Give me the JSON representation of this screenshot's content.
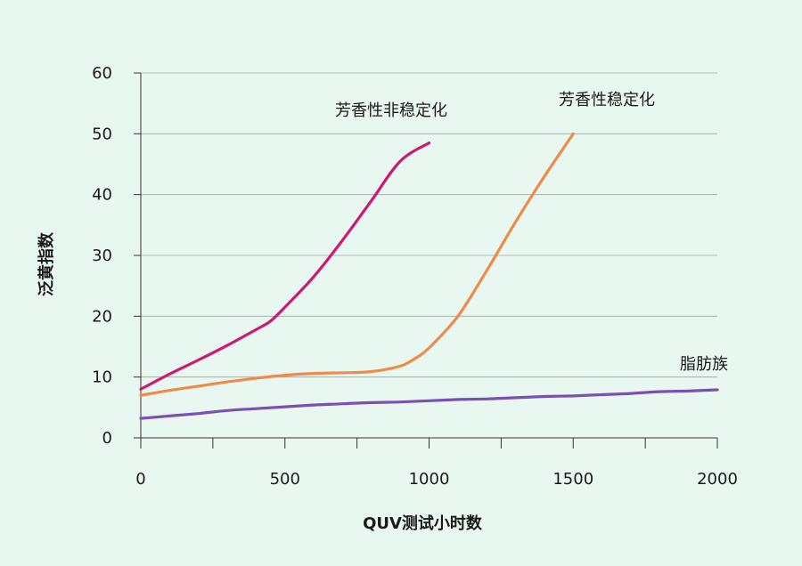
{
  "chart_data": {
    "type": "line",
    "xlabel": "QUV测试小时数",
    "ylabel": "泛黄指数",
    "xlim": [
      0,
      2000
    ],
    "ylim": [
      0,
      60
    ],
    "x_ticks": [
      0,
      500,
      1000,
      1500,
      2000
    ],
    "y_ticks": [
      0,
      10,
      20,
      30,
      40,
      50,
      60
    ],
    "x_minor_ticks": [
      250,
      750,
      1250,
      1750
    ],
    "grid": "horizontal",
    "series": [
      {
        "name": "芳香性非稳定化",
        "color": "#cc1a73",
        "x": [
          0,
          100,
          200,
          300,
          400,
          450,
          500,
          600,
          700,
          800,
          900,
          1000
        ],
        "y": [
          8,
          10.5,
          12.8,
          15.2,
          17.8,
          19.2,
          21.5,
          26.5,
          32.5,
          39,
          45.5,
          48.5
        ]
      },
      {
        "name": "芳香性稳定化",
        "color": "#f08a4b",
        "x": [
          0,
          100,
          200,
          300,
          400,
          500,
          600,
          700,
          800,
          900,
          950,
          1000,
          1100,
          1200,
          1300,
          1400,
          1500
        ],
        "y": [
          7,
          7.8,
          8.5,
          9.2,
          9.8,
          10.3,
          10.6,
          10.7,
          10.9,
          11.8,
          13,
          14.8,
          20,
          27.5,
          35.5,
          43,
          50
        ]
      },
      {
        "name": "脂肪族",
        "color": "#7b4fb5",
        "x": [
          0,
          100,
          200,
          300,
          400,
          500,
          600,
          700,
          800,
          900,
          1000,
          1100,
          1200,
          1300,
          1400,
          1500,
          1600,
          1700,
          1800,
          1900,
          2000
        ],
        "y": [
          3.2,
          3.6,
          4,
          4.5,
          4.8,
          5.1,
          5.4,
          5.6,
          5.8,
          5.9,
          6.1,
          6.3,
          6.4,
          6.6,
          6.8,
          6.9,
          7.1,
          7.3,
          7.6,
          7.7,
          7.9
        ]
      }
    ]
  }
}
